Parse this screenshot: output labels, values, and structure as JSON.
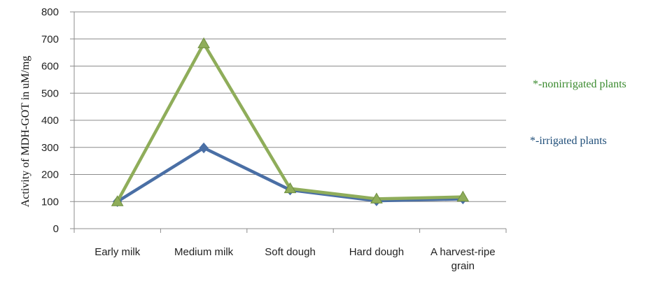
{
  "chart_data": {
    "type": "line",
    "categories": [
      [
        "Early milk"
      ],
      [
        "Medium milk"
      ],
      [
        "Soft dough"
      ],
      [
        "Hard dough"
      ],
      [
        "A harvest-ripe",
        "grain"
      ]
    ],
    "series": [
      {
        "name": "*-irrigated plants",
        "color": "#4a6fa5",
        "marker": "diamond",
        "values": [
          100,
          298,
          143,
          103,
          110
        ]
      },
      {
        "name": "*-nonirrigated plants",
        "color": "#8fad5a",
        "marker": "triangle",
        "values": [
          100,
          683,
          148,
          110,
          117
        ]
      }
    ],
    "title": "",
    "xlabel": "",
    "ylabel": "Activity of MDH-GOT in uM/mg",
    "ylim": [
      0,
      800
    ],
    "yticks": [
      0,
      100,
      200,
      300,
      400,
      500,
      600,
      700,
      800
    ],
    "grid": true,
    "legend_position": "right",
    "legend_colors": {
      "*-nonirrigated plants": "#3a8a2e",
      "*-irrigated plants": "#1f4e79"
    }
  }
}
